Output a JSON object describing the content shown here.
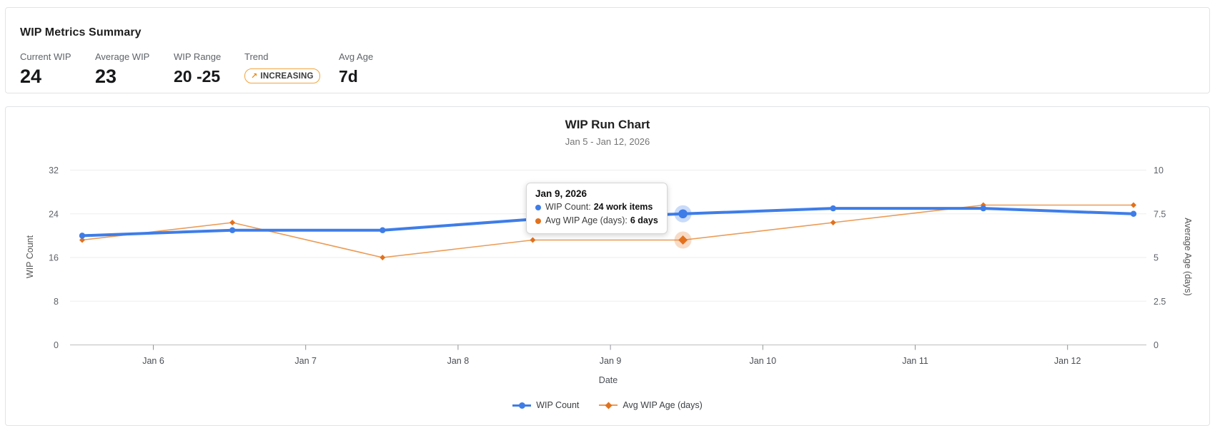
{
  "summary": {
    "title": "WIP Metrics Summary",
    "metrics": [
      {
        "label": "Current WIP",
        "value": "24",
        "type": "number"
      },
      {
        "label": "Average WIP",
        "value": "23",
        "type": "number"
      },
      {
        "label": "WIP Range",
        "value": "20 -25",
        "type": "number"
      },
      {
        "label": "Trend",
        "value": "INCREASING",
        "type": "badge",
        "arrow": "↗"
      },
      {
        "label": "Avg Age",
        "value": "7d",
        "type": "number"
      }
    ]
  },
  "chart_data": {
    "type": "line",
    "title": "WIP Run Chart",
    "subtitle": "Jan 5 - Jan 12, 2026",
    "xlabel": "Date",
    "x": [
      "Jan 5",
      "Jan 6",
      "Jan 7",
      "Jan 8",
      "Jan 9",
      "Jan 10",
      "Jan 11",
      "Jan 12"
    ],
    "x_tick_labels": [
      "Jan 6",
      "Jan 7",
      "Jan 8",
      "Jan 9",
      "Jan 10",
      "Jan 11",
      "Jan 12"
    ],
    "series": [
      {
        "name": "Avg WIP Age (days)",
        "axis": "right",
        "marker": "diamond",
        "color": "#E2711D",
        "line_color": "#EB9B55",
        "halo_color": "rgba(230,126,52,0.28)",
        "values": [
          6,
          7,
          5,
          6,
          6,
          7,
          8,
          8
        ]
      },
      {
        "name": "WIP Count",
        "axis": "left",
        "marker": "circle",
        "color": "#3E7DE8",
        "line_color": "#3E7DE8",
        "halo_color": "rgba(62,125,232,0.28)",
        "values": [
          20,
          21,
          21,
          23,
          24,
          25,
          25,
          24
        ]
      }
    ],
    "left_axis": {
      "label": "WIP Count",
      "ticks": [
        32,
        24,
        16,
        8,
        0
      ],
      "range": [
        0,
        35
      ]
    },
    "right_axis": {
      "label": "Average Age (days)",
      "ticks": [
        10,
        7.5,
        5,
        2.5,
        0
      ],
      "range": [
        0,
        11
      ]
    },
    "highlight_index": 4,
    "grid": true,
    "legend_position": "bottom",
    "legend_order": [
      "WIP Count",
      "Avg WIP Age (days)"
    ]
  },
  "tooltip": {
    "title": "Jan 9, 2026",
    "rows": [
      {
        "label": "WIP Count:",
        "value": "24 work items",
        "color": "#3E7DE8"
      },
      {
        "label": "Avg WIP Age (days):",
        "value": "6 days",
        "color": "#E2711D"
      }
    ]
  },
  "colors": {
    "blue": "#3E7DE8",
    "orange": "#E2711D",
    "orange_line": "#EB9B55",
    "badge_border": "#F2A43C",
    "grid_line": "#EDEDED",
    "axis_line": "#C9C9C9"
  }
}
